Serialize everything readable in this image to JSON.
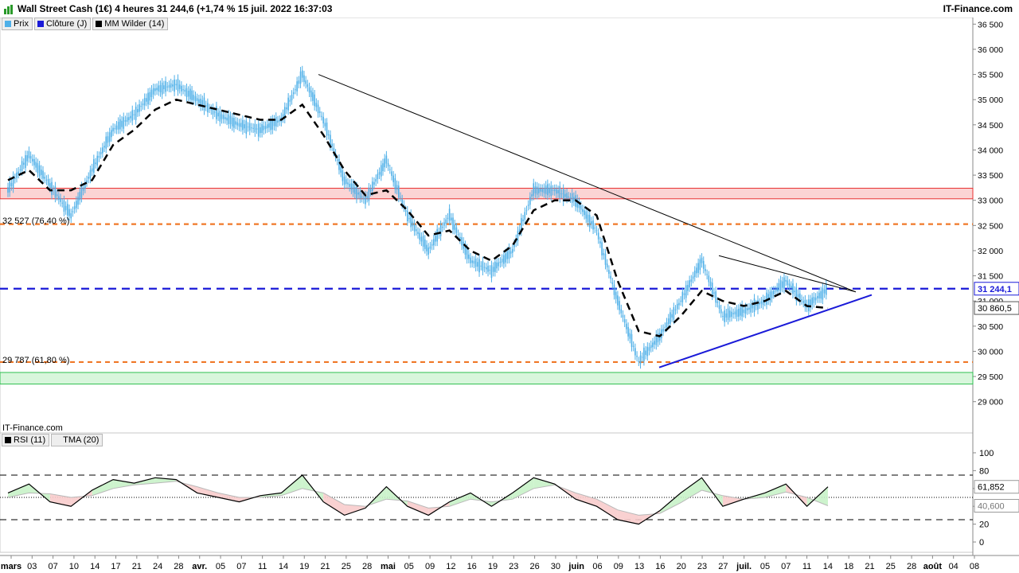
{
  "header": {
    "title": "Wall Street Cash (1€) 4 heures 31 244,6 (+1,74 % 15 juil. 2022 16:37:03",
    "brand": "IT-Finance.com",
    "logo": "bar-chart-logo-icon"
  },
  "legend": [
    {
      "label": "Prix",
      "color": "#4fb0e8"
    },
    {
      "label": "Clôture (J)",
      "color": "#1a1ad8"
    },
    {
      "label": "MM Wilder (14)",
      "color": "#000000"
    }
  ],
  "watermark": "IT-Finance.com",
  "colors": {
    "price": "#4fb0e8",
    "ma": "#000000",
    "resistance": "#e83030",
    "support": "#2fc050",
    "fib": "#f07828",
    "close": "#1a1ad8",
    "trend": "#1a1ad8"
  },
  "chart_data": [
    {
      "type": "line",
      "panel": "price",
      "series": [
        {
          "name": "Prix",
          "x": [
            "mars",
            "07",
            "10",
            "14",
            "17",
            "21",
            "24",
            "28",
            "avr.",
            "05",
            "07",
            "11",
            "14",
            "19",
            "21",
            "25",
            "28",
            "mai",
            "05",
            "09",
            "12",
            "16",
            "19",
            "23",
            "26",
            "30",
            "juin",
            "06",
            "09",
            "13",
            "16",
            "20",
            "23",
            "27",
            "juil.",
            "05",
            "07",
            "11",
            "14",
            "18"
          ],
          "values": [
            33200,
            33900,
            33300,
            32700,
            33600,
            34400,
            34700,
            35200,
            35300,
            35000,
            34700,
            34500,
            34400,
            34600,
            35500,
            34600,
            33400,
            33000,
            33800,
            32700,
            32000,
            32700,
            31800,
            31600,
            32000,
            33200,
            33200,
            33000,
            32400,
            31000,
            29800,
            30300,
            31000,
            31800,
            30700,
            30800,
            31000,
            31400,
            30900,
            31244
          ]
        },
        {
          "name": "MM Wilder (14)",
          "x": [
            "mars",
            "07",
            "10",
            "14",
            "17",
            "21",
            "24",
            "28",
            "avr.",
            "05",
            "07",
            "11",
            "14",
            "19",
            "21",
            "25",
            "28",
            "mai",
            "05",
            "09",
            "12",
            "16",
            "19",
            "23",
            "26",
            "30",
            "juin",
            "06",
            "09",
            "13",
            "16",
            "20",
            "23",
            "27",
            "juil.",
            "05",
            "07",
            "11",
            "14",
            "18"
          ],
          "values": [
            33400,
            33600,
            33200,
            33200,
            33400,
            34100,
            34400,
            34800,
            35000,
            34900,
            34800,
            34700,
            34600,
            34600,
            34900,
            34300,
            33600,
            33100,
            33200,
            32800,
            32300,
            32400,
            32000,
            31800,
            32100,
            32800,
            33000,
            33000,
            32700,
            31400,
            30400,
            30300,
            30700,
            31200,
            31000,
            30900,
            31000,
            31200,
            30900,
            30860
          ]
        }
      ],
      "x_ticks": [
        "mars",
        "03",
        "07",
        "10",
        "14",
        "17",
        "21",
        "24",
        "28",
        "avr.",
        "05",
        "07",
        "11",
        "14",
        "19",
        "21",
        "25",
        "28",
        "mai",
        "05",
        "09",
        "12",
        "16",
        "19",
        "23",
        "26",
        "30",
        "juin",
        "06",
        "09",
        "13",
        "16",
        "20",
        "23",
        "27",
        "juil.",
        "05",
        "07",
        "11",
        "14",
        "18",
        "21",
        "25",
        "28",
        "août",
        "04",
        "08"
      ],
      "y_ticks": [
        "36 500",
        "36 000",
        "35 500",
        "35 000",
        "34 500",
        "34 000",
        "33 500",
        "33 000",
        "32 500",
        "32 000",
        "31 500",
        "31 000",
        "30 500",
        "30 000",
        "29 500",
        "29 000"
      ],
      "ylim": [
        28600,
        36600
      ],
      "levels": [
        {
          "label": "32 527 (76,40 %)",
          "value": 32527,
          "style": "fib"
        },
        {
          "label": "29 787 (61,80 %)",
          "value": 29787,
          "style": "fib"
        },
        {
          "value": 31244,
          "style": "close"
        }
      ],
      "zones": [
        {
          "from": 33030,
          "to": 33240,
          "style": "resistance"
        },
        {
          "from": 29350,
          "to": 29580,
          "style": "support"
        }
      ],
      "price_tags": [
        {
          "label": "31 244,1",
          "value": 31244,
          "style": "close"
        },
        {
          "label": "30 860,5",
          "value": 30860,
          "style": "ma"
        }
      ]
    },
    {
      "type": "line",
      "panel": "rsi",
      "legend": [
        {
          "label": "RSI (11)",
          "color": "#000000"
        },
        {
          "label": "TMA (20)",
          "color": "#b8b8b8"
        }
      ],
      "series": [
        {
          "name": "RSI (11)",
          "x": [
            "mars",
            "07",
            "10",
            "14",
            "17",
            "21",
            "24",
            "28",
            "avr.",
            "05",
            "07",
            "11",
            "14",
            "19",
            "21",
            "25",
            "28",
            "mai",
            "05",
            "09",
            "12",
            "16",
            "19",
            "23",
            "26",
            "30",
            "juin",
            "06",
            "09",
            "13",
            "16",
            "20",
            "23",
            "27",
            "juil.",
            "05",
            "07",
            "11",
            "14",
            "18"
          ],
          "values": [
            55,
            65,
            45,
            40,
            58,
            70,
            66,
            72,
            70,
            55,
            50,
            45,
            52,
            55,
            75,
            45,
            30,
            38,
            62,
            40,
            30,
            45,
            55,
            40,
            55,
            72,
            65,
            48,
            40,
            25,
            20,
            35,
            55,
            72,
            40,
            48,
            55,
            65,
            40,
            61.852
          ]
        },
        {
          "name": "TMA (20)",
          "x": [
            "mars",
            "07",
            "10",
            "14",
            "17",
            "21",
            "24",
            "28",
            "avr.",
            "05",
            "07",
            "11",
            "14",
            "19",
            "21",
            "25",
            "28",
            "mai",
            "05",
            "09",
            "12",
            "16",
            "19",
            "23",
            "26",
            "30",
            "juin",
            "06",
            "09",
            "13",
            "16",
            "20",
            "23",
            "27",
            "juil.",
            "05",
            "07",
            "11",
            "14",
            "18"
          ],
          "values": [
            50,
            55,
            54,
            50,
            52,
            60,
            64,
            66,
            68,
            62,
            55,
            50,
            50,
            52,
            60,
            55,
            42,
            40,
            48,
            46,
            38,
            40,
            48,
            45,
            48,
            60,
            64,
            55,
            48,
            36,
            30,
            32,
            44,
            58,
            52,
            48,
            50,
            56,
            50,
            40.6
          ]
        }
      ],
      "y_ticks": [
        "100",
        "80",
        "60",
        "40",
        "20",
        "0"
      ],
      "ylim": [
        -8,
        108
      ],
      "levels": [
        75,
        50,
        25
      ],
      "value_tags": [
        {
          "label": "61,852",
          "value": 61.852
        },
        {
          "label": "40,600",
          "value": 40.6
        }
      ]
    }
  ]
}
